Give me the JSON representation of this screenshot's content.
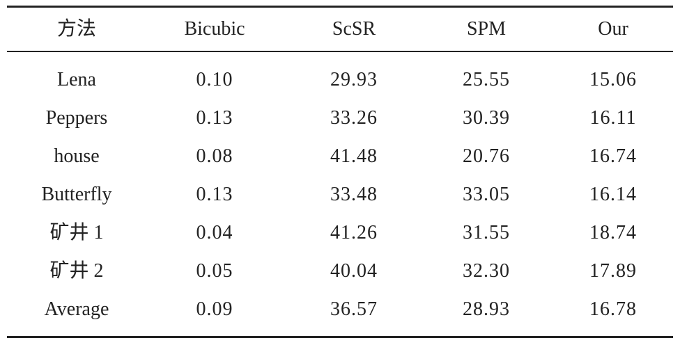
{
  "table": {
    "header": [
      "方法",
      "Bicubic",
      "ScSR",
      "SPM",
      "Our"
    ],
    "rows": [
      [
        "Lena",
        "0.10",
        "29.93",
        "25.55",
        "15.06"
      ],
      [
        "Peppers",
        "0.13",
        "33.26",
        "30.39",
        "16.11"
      ],
      [
        "house",
        "0.08",
        "41.48",
        "20.76",
        "16.74"
      ],
      [
        "Butterfly",
        "0.13",
        "33.48",
        "33.05",
        "16.14"
      ],
      [
        "矿井 1",
        "0.04",
        "41.26",
        "31.55",
        "18.74"
      ],
      [
        "矿井 2",
        "0.05",
        "40.04",
        "32.30",
        "17.89"
      ],
      [
        "Average",
        "0.09",
        "36.57",
        "28.93",
        "16.78"
      ]
    ]
  }
}
